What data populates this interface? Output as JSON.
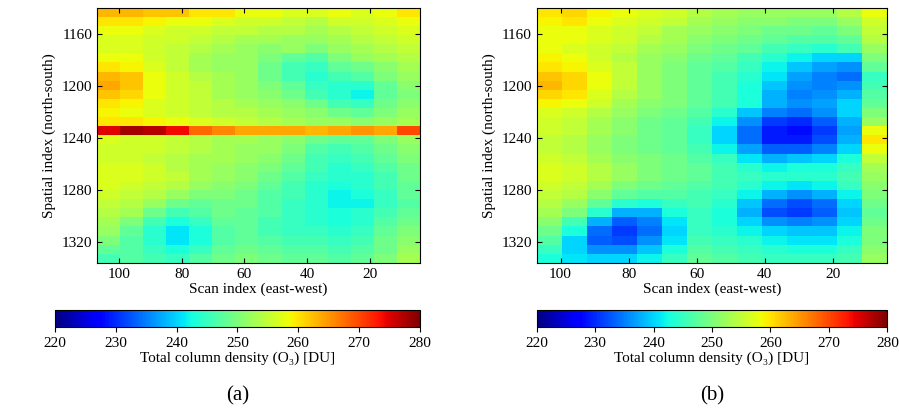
{
  "chart_data": [
    {
      "type": "heatmap",
      "title": "(a)",
      "x_label": "Scan index (east-west)",
      "y_label": "Spatial index (north-south)",
      "xlim": [
        107,
        4
      ],
      "ylim": [
        1336,
        1140
      ],
      "xticks": [
        100,
        80,
        60,
        40,
        20
      ],
      "yticks": [
        1160,
        1200,
        1240,
        1280,
        1320
      ],
      "color": "jet",
      "colorbar_label": "Total column density (O₃) [DU]",
      "colorbar_range": [
        220,
        280
      ],
      "colorbar_ticks": [
        220,
        230,
        240,
        250,
        260,
        270,
        280
      ],
      "cells": [
        [
          263,
          263,
          262,
          262,
          260,
          260,
          258,
          258,
          257,
          257,
          258,
          257,
          258,
          260
        ],
        [
          260,
          260,
          259,
          258,
          258,
          257,
          256,
          256,
          255,
          254,
          256,
          256,
          257,
          258
        ],
        [
          258,
          258,
          257,
          256,
          256,
          255,
          255,
          254,
          254,
          253,
          254,
          255,
          256,
          257
        ],
        [
          257,
          257,
          256,
          256,
          255,
          254,
          253,
          253,
          252,
          252,
          253,
          254,
          255,
          256
        ],
        [
          257,
          257,
          256,
          255,
          254,
          253,
          252,
          251,
          252,
          250,
          252,
          253,
          254,
          255
        ],
        [
          258,
          258,
          256,
          255,
          253,
          252,
          252,
          250,
          248,
          247,
          250,
          252,
          253,
          254
        ],
        [
          260,
          259,
          257,
          255,
          253,
          252,
          252,
          249,
          246,
          245,
          248,
          249,
          251,
          253
        ],
        [
          263,
          262,
          258,
          256,
          254,
          253,
          252,
          249,
          246,
          244,
          246,
          247,
          250,
          252
        ],
        [
          264,
          262,
          258,
          256,
          255,
          253,
          252,
          250,
          248,
          245,
          244,
          244,
          248,
          251
        ],
        [
          262,
          261,
          258,
          256,
          255,
          253,
          252,
          251,
          249,
          246,
          244,
          242,
          248,
          250
        ],
        [
          260,
          259,
          257,
          256,
          255,
          254,
          253,
          252,
          251,
          249,
          246,
          245,
          249,
          251
        ],
        [
          259,
          258,
          257,
          256,
          255,
          254,
          254,
          253,
          252,
          251,
          249,
          248,
          250,
          252
        ],
        [
          260,
          260,
          259,
          258,
          257,
          256,
          255,
          254,
          253,
          252,
          252,
          251,
          252,
          253
        ],
        [
          275,
          278,
          277,
          274,
          268,
          266,
          264,
          264,
          264,
          263,
          264,
          265,
          264,
          270
        ],
        [
          257,
          256,
          256,
          255,
          254,
          253,
          253,
          252,
          251,
          249,
          248,
          248,
          250,
          252
        ],
        [
          256,
          256,
          256,
          255,
          254,
          253,
          252,
          252,
          250,
          247,
          246,
          247,
          249,
          251
        ],
        [
          256,
          256,
          255,
          254,
          253,
          253,
          252,
          251,
          249,
          246,
          245,
          246,
          248,
          250
        ],
        [
          257,
          257,
          256,
          254,
          253,
          252,
          251,
          250,
          248,
          246,
          244,
          245,
          247,
          249
        ],
        [
          257,
          257,
          256,
          255,
          253,
          252,
          251,
          249,
          247,
          245,
          244,
          244,
          246,
          249
        ],
        [
          257,
          256,
          255,
          254,
          252,
          251,
          250,
          248,
          246,
          244,
          243,
          244,
          246,
          248
        ],
        [
          256,
          255,
          254,
          252,
          250,
          250,
          249,
          247,
          246,
          244,
          242,
          243,
          245,
          248
        ],
        [
          255,
          254,
          252,
          249,
          248,
          249,
          249,
          247,
          245,
          244,
          242,
          242,
          245,
          247
        ],
        [
          254,
          253,
          249,
          246,
          247,
          249,
          248,
          247,
          245,
          244,
          243,
          244,
          246,
          248
        ],
        [
          253,
          250,
          246,
          243,
          245,
          248,
          248,
          246,
          245,
          244,
          243,
          244,
          247,
          249
        ],
        [
          252,
          248,
          244,
          241,
          243,
          247,
          248,
          246,
          245,
          245,
          244,
          245,
          248,
          250
        ],
        [
          250,
          247,
          244,
          241,
          243,
          247,
          248,
          247,
          246,
          246,
          245,
          246,
          249,
          251
        ],
        [
          248,
          247,
          245,
          243,
          245,
          248,
          249,
          248,
          247,
          247,
          246,
          247,
          249,
          252
        ],
        [
          246,
          247,
          246,
          245,
          247,
          249,
          250,
          249,
          248,
          248,
          247,
          248,
          250,
          253
        ]
      ]
    },
    {
      "type": "heatmap",
      "title": "(b)",
      "x_label": "Scan index (east-west)",
      "y_label": "Spatial index (north-south)",
      "xlim": [
        107,
        4
      ],
      "ylim": [
        1336,
        1140
      ],
      "xticks": [
        100,
        80,
        60,
        40,
        20
      ],
      "yticks": [
        1160,
        1200,
        1240,
        1280,
        1320
      ],
      "color": "jet",
      "colorbar_label": "Total column density (O₃) [DU]",
      "colorbar_range": [
        220,
        280
      ],
      "colorbar_ticks": [
        220,
        230,
        240,
        250,
        260,
        270,
        280
      ],
      "cells": [
        [
          260,
          261,
          259,
          258,
          257,
          256,
          254,
          253,
          252,
          252,
          252,
          252,
          254,
          258
        ],
        [
          259,
          260,
          258,
          257,
          256,
          255,
          253,
          252,
          251,
          251,
          250,
          250,
          252,
          256
        ],
        [
          258,
          258,
          257,
          256,
          255,
          253,
          252,
          251,
          250,
          249,
          249,
          248,
          250,
          255
        ],
        [
          258,
          258,
          257,
          256,
          254,
          253,
          251,
          250,
          249,
          248,
          247,
          247,
          248,
          254
        ],
        [
          258,
          257,
          256,
          255,
          253,
          252,
          250,
          249,
          248,
          246,
          245,
          244,
          246,
          252
        ],
        [
          259,
          258,
          256,
          254,
          252,
          251,
          249,
          248,
          246,
          244,
          242,
          240,
          240,
          250
        ],
        [
          260,
          259,
          257,
          255,
          252,
          250,
          248,
          247,
          245,
          242,
          239,
          237,
          236,
          248
        ],
        [
          262,
          261,
          258,
          255,
          252,
          250,
          248,
          246,
          244,
          241,
          237,
          235,
          234,
          245
        ],
        [
          263,
          261,
          258,
          255,
          252,
          250,
          248,
          246,
          243,
          239,
          236,
          235,
          236,
          246
        ],
        [
          261,
          260,
          257,
          254,
          252,
          250,
          248,
          246,
          243,
          238,
          235,
          236,
          238,
          247
        ],
        [
          259,
          258,
          256,
          253,
          251,
          250,
          248,
          246,
          243,
          238,
          236,
          237,
          240,
          248
        ],
        [
          257,
          256,
          254,
          252,
          250,
          249,
          247,
          244,
          239,
          235,
          234,
          236,
          240,
          250
        ],
        [
          256,
          255,
          253,
          251,
          249,
          248,
          246,
          242,
          236,
          231,
          230,
          233,
          238,
          252
        ],
        [
          256,
          255,
          253,
          251,
          249,
          248,
          245,
          240,
          234,
          229,
          228,
          231,
          237,
          258
        ],
        [
          255,
          254,
          252,
          250,
          249,
          248,
          245,
          240,
          234,
          229,
          229,
          232,
          238,
          260
        ],
        [
          255,
          254,
          252,
          250,
          249,
          248,
          246,
          242,
          237,
          233,
          233,
          235,
          240,
          258
        ],
        [
          256,
          255,
          253,
          251,
          250,
          249,
          247,
          245,
          241,
          238,
          239,
          240,
          243,
          255
        ],
        [
          257,
          256,
          254,
          252,
          250,
          249,
          248,
          246,
          244,
          242,
          243,
          243,
          245,
          253
        ],
        [
          257,
          256,
          254,
          252,
          250,
          249,
          248,
          246,
          245,
          244,
          244,
          244,
          246,
          252
        ],
        [
          256,
          255,
          253,
          250,
          249,
          248,
          247,
          246,
          244,
          242,
          241,
          242,
          245,
          251
        ],
        [
          255,
          254,
          251,
          248,
          247,
          247,
          246,
          245,
          242,
          238,
          236,
          238,
          242,
          250
        ],
        [
          254,
          252,
          248,
          244,
          243,
          245,
          246,
          244,
          239,
          234,
          232,
          234,
          240,
          249
        ],
        [
          253,
          250,
          244,
          238,
          238,
          243,
          245,
          243,
          238,
          232,
          231,
          233,
          239,
          248
        ],
        [
          251,
          246,
          238,
          233,
          235,
          241,
          245,
          243,
          240,
          236,
          235,
          236,
          240,
          249
        ],
        [
          249,
          243,
          234,
          231,
          234,
          240,
          245,
          244,
          242,
          240,
          239,
          239,
          242,
          250
        ],
        [
          247,
          240,
          233,
          232,
          236,
          241,
          246,
          245,
          244,
          242,
          241,
          241,
          243,
          250
        ],
        [
          245,
          240,
          236,
          236,
          239,
          243,
          247,
          246,
          245,
          244,
          243,
          243,
          245,
          251
        ],
        [
          243,
          241,
          240,
          240,
          242,
          245,
          248,
          247,
          246,
          245,
          245,
          245,
          246,
          252
        ]
      ]
    }
  ]
}
